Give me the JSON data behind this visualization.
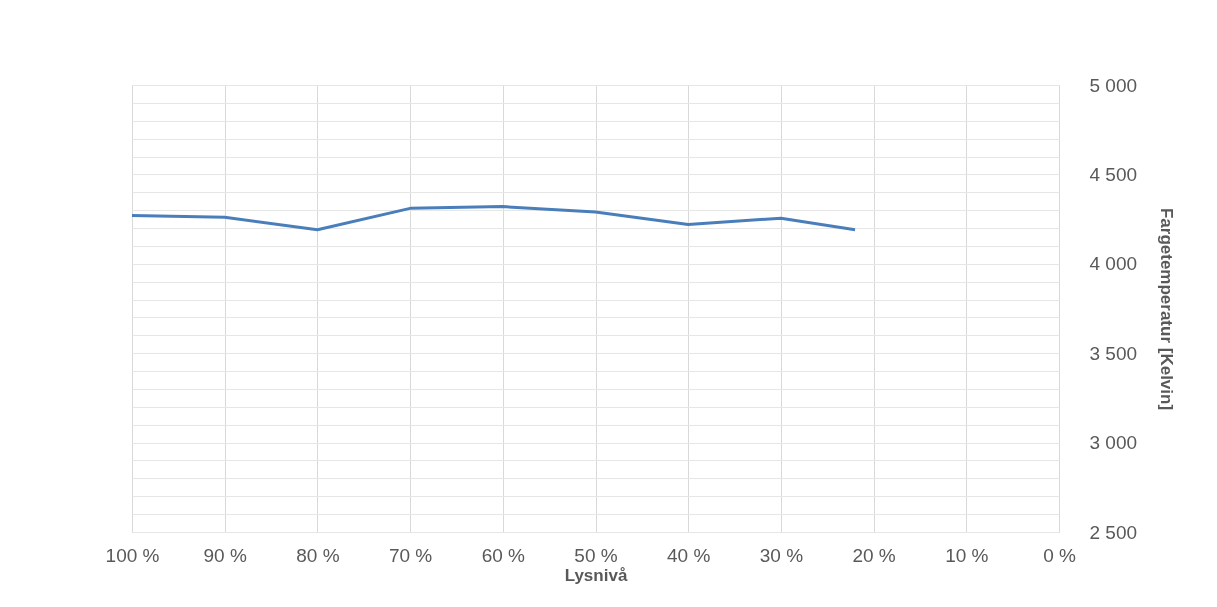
{
  "chart_data": {
    "type": "line",
    "xlabel": "Lysnivå",
    "ylabel": "Fargetemperatur [Kelvin]",
    "x": [
      100,
      90,
      80,
      70,
      60,
      50,
      40,
      30,
      22
    ],
    "series": [
      {
        "color": "#4a7ebb",
        "values": [
          4270,
          4260,
          4190,
          4310,
          4320,
          4290,
          4220,
          4255,
          4190
        ]
      }
    ],
    "xlim": [
      100,
      0
    ],
    "xticks": [
      {
        "value": 100,
        "label": "100 %"
      },
      {
        "value": 90,
        "label": "90 %"
      },
      {
        "value": 80,
        "label": "80 %"
      },
      {
        "value": 70,
        "label": "70 %"
      },
      {
        "value": 60,
        "label": "60 %"
      },
      {
        "value": 50,
        "label": "50 %"
      },
      {
        "value": 40,
        "label": "40 %"
      },
      {
        "value": 30,
        "label": "30 %"
      },
      {
        "value": 20,
        "label": "20 %"
      },
      {
        "value": 10,
        "label": "10 %"
      },
      {
        "value": 0,
        "label": "0 %"
      }
    ],
    "ylim": [
      2500,
      5000
    ],
    "yticks": [
      {
        "value": 2500,
        "label": "2 500"
      },
      {
        "value": 2600,
        "label": null
      },
      {
        "value": 2700,
        "label": null
      },
      {
        "value": 2800,
        "label": null
      },
      {
        "value": 2900,
        "label": null
      },
      {
        "value": 3000,
        "label": "3 000"
      },
      {
        "value": 3100,
        "label": null
      },
      {
        "value": 3200,
        "label": null
      },
      {
        "value": 3300,
        "label": null
      },
      {
        "value": 3400,
        "label": null
      },
      {
        "value": 3500,
        "label": "3 500"
      },
      {
        "value": 3600,
        "label": null
      },
      {
        "value": 3700,
        "label": null
      },
      {
        "value": 3800,
        "label": null
      },
      {
        "value": 3900,
        "label": null
      },
      {
        "value": 4000,
        "label": "4 000"
      },
      {
        "value": 4100,
        "label": null
      },
      {
        "value": 4200,
        "label": null
      },
      {
        "value": 4300,
        "label": null
      },
      {
        "value": 4400,
        "label": null
      },
      {
        "value": 4500,
        "label": "4 500"
      },
      {
        "value": 4600,
        "label": null
      },
      {
        "value": 4700,
        "label": null
      },
      {
        "value": 4800,
        "label": null
      },
      {
        "value": 4900,
        "label": null
      },
      {
        "value": 5000,
        "label": "5 000"
      }
    ],
    "grid": true,
    "marker": "none",
    "line_style": "solid"
  }
}
